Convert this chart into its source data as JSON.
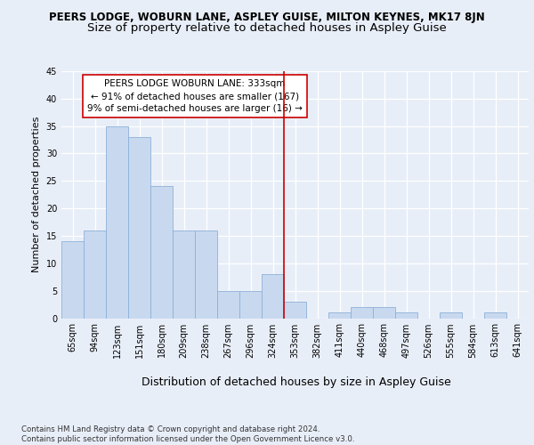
{
  "title1": "PEERS LODGE, WOBURN LANE, ASPLEY GUISE, MILTON KEYNES, MK17 8JN",
  "title2": "Size of property relative to detached houses in Aspley Guise",
  "xlabel": "Distribution of detached houses by size in Aspley Guise",
  "ylabel": "Number of detached properties",
  "footnote": "Contains HM Land Registry data © Crown copyright and database right 2024.\nContains public sector information licensed under the Open Government Licence v3.0.",
  "bin_labels": [
    "65sqm",
    "94sqm",
    "123sqm",
    "151sqm",
    "180sqm",
    "209sqm",
    "238sqm",
    "267sqm",
    "296sqm",
    "324sqm",
    "353sqm",
    "382sqm",
    "411sqm",
    "440sqm",
    "468sqm",
    "497sqm",
    "526sqm",
    "555sqm",
    "584sqm",
    "613sqm",
    "641sqm"
  ],
  "values": [
    14,
    16,
    35,
    33,
    24,
    16,
    16,
    5,
    5,
    8,
    3,
    0,
    1,
    2,
    2,
    1,
    0,
    1,
    0,
    1,
    0
  ],
  "bar_color": "#c8d9ef",
  "bar_edge_color": "#8db0d8",
  "vline_x_index": 9.5,
  "vline_color": "#cc0000",
  "annotation_text": "PEERS LODGE WOBURN LANE: 333sqm\n← 91% of detached houses are smaller (167)\n9% of semi-detached houses are larger (16) →",
  "annotation_box_color": "#ffffff",
  "annotation_box_edge": "#cc0000",
  "ylim": [
    0,
    45
  ],
  "yticks": [
    0,
    5,
    10,
    15,
    20,
    25,
    30,
    35,
    40,
    45
  ],
  "background_color": "#e8eef8",
  "grid_color": "#ffffff",
  "title1_fontsize": 8.5,
  "title2_fontsize": 9.5,
  "xlabel_fontsize": 9,
  "ylabel_fontsize": 8,
  "tick_fontsize": 7,
  "annotation_fontsize": 7.5,
  "footnote_fontsize": 6.2
}
